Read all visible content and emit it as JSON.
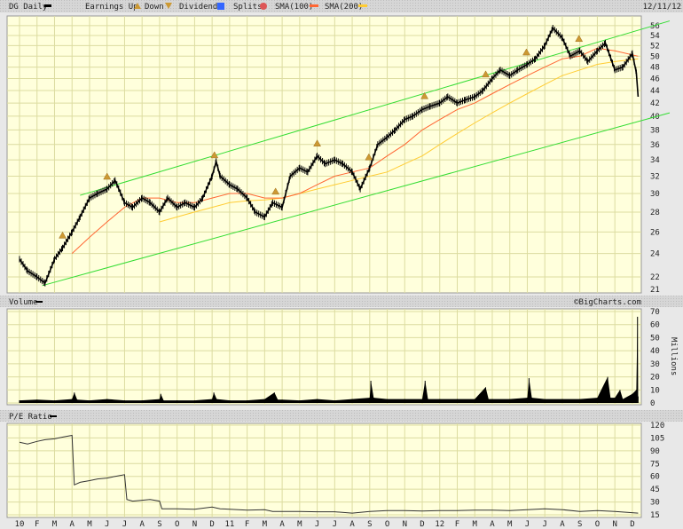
{
  "header": {
    "symbol_label": "DG Daily",
    "earnings_label": "Earnings Up",
    "down_label": "Down",
    "dividends_label": "Dividends",
    "splits_label": "Splits",
    "sma100_label": "SMA(100)",
    "sma200_label": "SMA(200)",
    "date": "12/11/12"
  },
  "volume_panel": {
    "title": "Volume",
    "copyright": "©BigCharts.com",
    "unit_label": "Millions"
  },
  "pe_panel": {
    "title": "P/E Ratio"
  },
  "colors": {
    "background": "#ffffdc",
    "grid": "#dcdca0",
    "price": "#000000",
    "sma100": "#ff6633",
    "sma200": "#ffcc33",
    "trendline": "#33dd33",
    "earnings": "#cc9933",
    "dividends": "#3366ff",
    "splits": "#dd5555"
  },
  "chart_data": [
    {
      "type": "line",
      "title": "DG Daily",
      "y_scale": "log",
      "ylim": [
        21,
        57
      ],
      "y_ticks": [
        22,
        24,
        26,
        28,
        30,
        32,
        34,
        36,
        38,
        40,
        42,
        44,
        46,
        48,
        50,
        52,
        54,
        56
      ],
      "y_tick_extra": [
        21
      ],
      "x_tick_labels": [
        "10",
        "F",
        "M",
        "A",
        "M",
        "J",
        "J",
        "A",
        "S",
        "O",
        "N",
        "D",
        "11",
        "F",
        "M",
        "A",
        "M",
        "J",
        "J",
        "A",
        "S",
        "O",
        "N",
        "D",
        "12",
        "F",
        "M",
        "A",
        "M",
        "J",
        "J",
        "A",
        "S",
        "O",
        "N",
        "D"
      ],
      "grid": true,
      "series": [
        {
          "name": "DG Daily",
          "points": [
            [
              "2010-01-01",
              23.5
            ],
            [
              "2010-01-15",
              22.5
            ],
            [
              "2010-02-01",
              22
            ],
            [
              "2010-02-15",
              21.5
            ],
            [
              "2010-03-01",
              23.5
            ],
            [
              "2010-03-15",
              24.5
            ],
            [
              "2010-04-01",
              26
            ],
            [
              "2010-04-15",
              27.5
            ],
            [
              "2010-05-01",
              29.5
            ],
            [
              "2010-05-15",
              30
            ],
            [
              "2010-06-01",
              30.5
            ],
            [
              "2010-06-15",
              31.5
            ],
            [
              "2010-07-01",
              29
            ],
            [
              "2010-07-15",
              28.5
            ],
            [
              "2010-08-01",
              29.5
            ],
            [
              "2010-08-15",
              29
            ],
            [
              "2010-09-01",
              28
            ],
            [
              "2010-09-15",
              29.5
            ],
            [
              "2010-10-01",
              28.5
            ],
            [
              "2010-10-15",
              29
            ],
            [
              "2010-11-01",
              28.5
            ],
            [
              "2010-11-15",
              29.5
            ],
            [
              "2010-12-01",
              32
            ],
            [
              "2010-12-08",
              33.8
            ],
            [
              "2010-12-15",
              32
            ],
            [
              "2011-01-01",
              31
            ],
            [
              "2011-01-15",
              30.5
            ],
            [
              "2011-02-01",
              29.5
            ],
            [
              "2011-02-15",
              28
            ],
            [
              "2011-03-01",
              27.5
            ],
            [
              "2011-03-15",
              29
            ],
            [
              "2011-04-01",
              28.5
            ],
            [
              "2011-04-15",
              32
            ],
            [
              "2011-05-01",
              33
            ],
            [
              "2011-05-15",
              32.5
            ],
            [
              "2011-06-01",
              34.5
            ],
            [
              "2011-06-15",
              33.5
            ],
            [
              "2011-07-01",
              34
            ],
            [
              "2011-07-15",
              33.5
            ],
            [
              "2011-08-01",
              32.5
            ],
            [
              "2011-08-15",
              30.5
            ],
            [
              "2011-09-01",
              33
            ],
            [
              "2011-09-15",
              36
            ],
            [
              "2011-10-01",
              37
            ],
            [
              "2011-10-15",
              38
            ],
            [
              "2011-11-01",
              39.5
            ],
            [
              "2011-11-15",
              40
            ],
            [
              "2011-12-01",
              41
            ],
            [
              "2011-12-15",
              41.5
            ],
            [
              "2012-01-01",
              42
            ],
            [
              "2012-01-15",
              43
            ],
            [
              "2012-02-01",
              42
            ],
            [
              "2012-02-15",
              42.5
            ],
            [
              "2012-03-01",
              43
            ],
            [
              "2012-03-15",
              44
            ],
            [
              "2012-04-01",
              46
            ],
            [
              "2012-04-15",
              47.5
            ],
            [
              "2012-05-01",
              46.5
            ],
            [
              "2012-05-15",
              47.5
            ],
            [
              "2012-06-01",
              48.5
            ],
            [
              "2012-06-15",
              49.5
            ],
            [
              "2012-07-01",
              52
            ],
            [
              "2012-07-15",
              55.5
            ],
            [
              "2012-08-01",
              53.5
            ],
            [
              "2012-08-15",
              50
            ],
            [
              "2012-09-01",
              51
            ],
            [
              "2012-09-15",
              49
            ],
            [
              "2012-10-01",
              51
            ],
            [
              "2012-10-15",
              52.5
            ],
            [
              "2012-11-01",
              47.5
            ],
            [
              "2012-11-15",
              48
            ],
            [
              "2012-12-01",
              50.5
            ],
            [
              "2012-12-08",
              47
            ],
            [
              "2012-12-11",
              43
            ]
          ]
        },
        {
          "name": "SMA(100)",
          "points": [
            [
              "2010-04-01",
              24
            ],
            [
              "2010-05-01",
              25.5
            ],
            [
              "2010-06-01",
              27
            ],
            [
              "2010-07-01",
              28.5
            ],
            [
              "2010-08-01",
              29.5
            ],
            [
              "2010-09-01",
              29.5
            ],
            [
              "2010-10-01",
              29
            ],
            [
              "2010-11-01",
              29
            ],
            [
              "2010-12-01",
              29.5
            ],
            [
              "2011-01-01",
              30
            ],
            [
              "2011-02-01",
              30
            ],
            [
              "2011-03-01",
              29.5
            ],
            [
              "2011-04-01",
              29.5
            ],
            [
              "2011-05-01",
              30
            ],
            [
              "2011-06-01",
              31
            ],
            [
              "2011-07-01",
              32
            ],
            [
              "2011-08-01",
              32.5
            ],
            [
              "2011-09-01",
              33
            ],
            [
              "2011-10-01",
              34.5
            ],
            [
              "2011-11-01",
              36
            ],
            [
              "2011-12-01",
              38
            ],
            [
              "2012-01-01",
              39.5
            ],
            [
              "2012-02-01",
              41
            ],
            [
              "2012-03-01",
              42
            ],
            [
              "2012-04-01",
              43.5
            ],
            [
              "2012-05-01",
              45
            ],
            [
              "2012-06-01",
              46.5
            ],
            [
              "2012-07-01",
              48
            ],
            [
              "2012-08-01",
              49.5
            ],
            [
              "2012-09-01",
              50
            ],
            [
              "2012-10-01",
              51.5
            ],
            [
              "2012-11-01",
              51
            ],
            [
              "2012-12-11",
              50
            ]
          ]
        },
        {
          "name": "SMA(200)",
          "points": [
            [
              "2010-09-01",
              27
            ],
            [
              "2010-10-01",
              27.5
            ],
            [
              "2010-11-01",
              28
            ],
            [
              "2010-12-01",
              28.5
            ],
            [
              "2011-01-01",
              29
            ],
            [
              "2011-02-01",
              29.2
            ],
            [
              "2011-03-01",
              29.3
            ],
            [
              "2011-04-01",
              29.5
            ],
            [
              "2011-05-01",
              30
            ],
            [
              "2011-06-01",
              30.5
            ],
            [
              "2011-07-01",
              31
            ],
            [
              "2011-08-01",
              31.5
            ],
            [
              "2011-09-01",
              32
            ],
            [
              "2011-10-01",
              32.5
            ],
            [
              "2011-11-01",
              33.5
            ],
            [
              "2011-12-01",
              34.5
            ],
            [
              "2012-01-01",
              36
            ],
            [
              "2012-02-01",
              37.5
            ],
            [
              "2012-03-01",
              39
            ],
            [
              "2012-04-01",
              40.5
            ],
            [
              "2012-05-01",
              42
            ],
            [
              "2012-06-01",
              43.5
            ],
            [
              "2012-07-01",
              45
            ],
            [
              "2012-08-01",
              46.5
            ],
            [
              "2012-09-01",
              47.5
            ],
            [
              "2012-10-01",
              48.5
            ],
            [
              "2012-11-01",
              49
            ],
            [
              "2012-12-11",
              49.5
            ]
          ]
        }
      ],
      "trendlines": [
        {
          "from": [
            "2010-04-15",
            29.8
          ],
          "to": [
            "2013-02-05",
            57
          ]
        },
        {
          "from": [
            "2010-02-10",
            21.3
          ],
          "to": [
            "2013-02-05",
            40.5
          ]
        }
      ],
      "earnings_markers": [
        "2010-03-15",
        "2010-06-01",
        "2010-12-05",
        "2011-03-20",
        "2011-06-01",
        "2011-08-30",
        "2011-12-05",
        "2012-03-20",
        "2012-05-30",
        "2012-08-30"
      ]
    },
    {
      "type": "area",
      "title": "Volume",
      "ylabel": "Millions",
      "ylim": [
        0,
        70
      ],
      "y_ticks": [
        0,
        10,
        20,
        30,
        40,
        50,
        60,
        70
      ],
      "points": [
        [
          "2010-01-01",
          2
        ],
        [
          "2010-02-01",
          2.5
        ],
        [
          "2010-03-01",
          2
        ],
        [
          "2010-04-01",
          3
        ],
        [
          "2010-04-05",
          8
        ],
        [
          "2010-04-10",
          2.5
        ],
        [
          "2010-05-01",
          2
        ],
        [
          "2010-06-01",
          3
        ],
        [
          "2010-07-01",
          2
        ],
        [
          "2010-08-01",
          2
        ],
        [
          "2010-09-01",
          3
        ],
        [
          "2010-09-03",
          7
        ],
        [
          "2010-09-08",
          2
        ],
        [
          "2010-10-01",
          2
        ],
        [
          "2010-11-01",
          2
        ],
        [
          "2010-12-01",
          3
        ],
        [
          "2010-12-04",
          8
        ],
        [
          "2010-12-09",
          3
        ],
        [
          "2011-01-01",
          2
        ],
        [
          "2011-02-01",
          2
        ],
        [
          "2011-03-01",
          3
        ],
        [
          "2011-03-18",
          8
        ],
        [
          "2011-03-24",
          2.5
        ],
        [
          "2011-04-01",
          2.5
        ],
        [
          "2011-05-01",
          2
        ],
        [
          "2011-06-01",
          3
        ],
        [
          "2011-07-01",
          2
        ],
        [
          "2011-08-01",
          3
        ],
        [
          "2011-09-01",
          4
        ],
        [
          "2011-09-03",
          17
        ],
        [
          "2011-09-08",
          4
        ],
        [
          "2011-10-01",
          3
        ],
        [
          "2011-11-01",
          3
        ],
        [
          "2011-12-01",
          3
        ],
        [
          "2011-12-06",
          17
        ],
        [
          "2011-12-11",
          3
        ],
        [
          "2012-01-01",
          3
        ],
        [
          "2012-02-01",
          3
        ],
        [
          "2012-03-01",
          3
        ],
        [
          "2012-03-20",
          12
        ],
        [
          "2012-03-25",
          3
        ],
        [
          "2012-04-01",
          3
        ],
        [
          "2012-05-01",
          3
        ],
        [
          "2012-06-01",
          4
        ],
        [
          "2012-06-04",
          19
        ],
        [
          "2012-06-09",
          4
        ],
        [
          "2012-07-01",
          3
        ],
        [
          "2012-08-01",
          3
        ],
        [
          "2012-09-01",
          3
        ],
        [
          "2012-10-01",
          4
        ],
        [
          "2012-10-19",
          20
        ],
        [
          "2012-10-24",
          4
        ],
        [
          "2012-11-01",
          4
        ],
        [
          "2012-11-10",
          10
        ],
        [
          "2012-11-15",
          3
        ],
        [
          "2012-12-01",
          7
        ],
        [
          "2012-12-08",
          10
        ],
        [
          "2012-12-10",
          66
        ],
        [
          "2012-12-11",
          5
        ]
      ]
    },
    {
      "type": "line",
      "title": "P/E Ratio",
      "ylim": [
        15,
        120
      ],
      "y_ticks": [
        15,
        30,
        45,
        60,
        75,
        90,
        105,
        120
      ],
      "points": [
        [
          "2010-01-01",
          100
        ],
        [
          "2010-01-15",
          98
        ],
        [
          "2010-02-01",
          101
        ],
        [
          "2010-02-15",
          103
        ],
        [
          "2010-03-01",
          104
        ],
        [
          "2010-03-15",
          106
        ],
        [
          "2010-04-01",
          108
        ],
        [
          "2010-04-05",
          50
        ],
        [
          "2010-04-15",
          53
        ],
        [
          "2010-05-01",
          55
        ],
        [
          "2010-05-15",
          57
        ],
        [
          "2010-06-01",
          58
        ],
        [
          "2010-06-15",
          60
        ],
        [
          "2010-07-01",
          62
        ],
        [
          "2010-07-05",
          33
        ],
        [
          "2010-07-15",
          31
        ],
        [
          "2010-08-01",
          32
        ],
        [
          "2010-08-15",
          33
        ],
        [
          "2010-09-01",
          31
        ],
        [
          "2010-09-05",
          22
        ],
        [
          "2010-10-01",
          22
        ],
        [
          "2010-11-01",
          21.5
        ],
        [
          "2010-12-01",
          24
        ],
        [
          "2010-12-15",
          22
        ],
        [
          "2011-01-01",
          21.5
        ],
        [
          "2011-02-01",
          20.5
        ],
        [
          "2011-03-01",
          21
        ],
        [
          "2011-03-15",
          19
        ],
        [
          "2011-04-01",
          19
        ],
        [
          "2011-05-01",
          19
        ],
        [
          "2011-06-01",
          18.5
        ],
        [
          "2011-07-01",
          18.5
        ],
        [
          "2011-08-01",
          17
        ],
        [
          "2011-09-01",
          19
        ],
        [
          "2011-10-01",
          20
        ],
        [
          "2011-11-01",
          20
        ],
        [
          "2011-12-01",
          19.5
        ],
        [
          "2012-01-01",
          20
        ],
        [
          "2012-02-01",
          20
        ],
        [
          "2012-03-01",
          20.5
        ],
        [
          "2012-04-01",
          20.5
        ],
        [
          "2012-05-01",
          20
        ],
        [
          "2012-06-01",
          21
        ],
        [
          "2012-07-01",
          22
        ],
        [
          "2012-08-01",
          21
        ],
        [
          "2012-09-01",
          19
        ],
        [
          "2012-10-01",
          20
        ],
        [
          "2012-11-01",
          19
        ],
        [
          "2012-12-11",
          17
        ]
      ]
    }
  ]
}
